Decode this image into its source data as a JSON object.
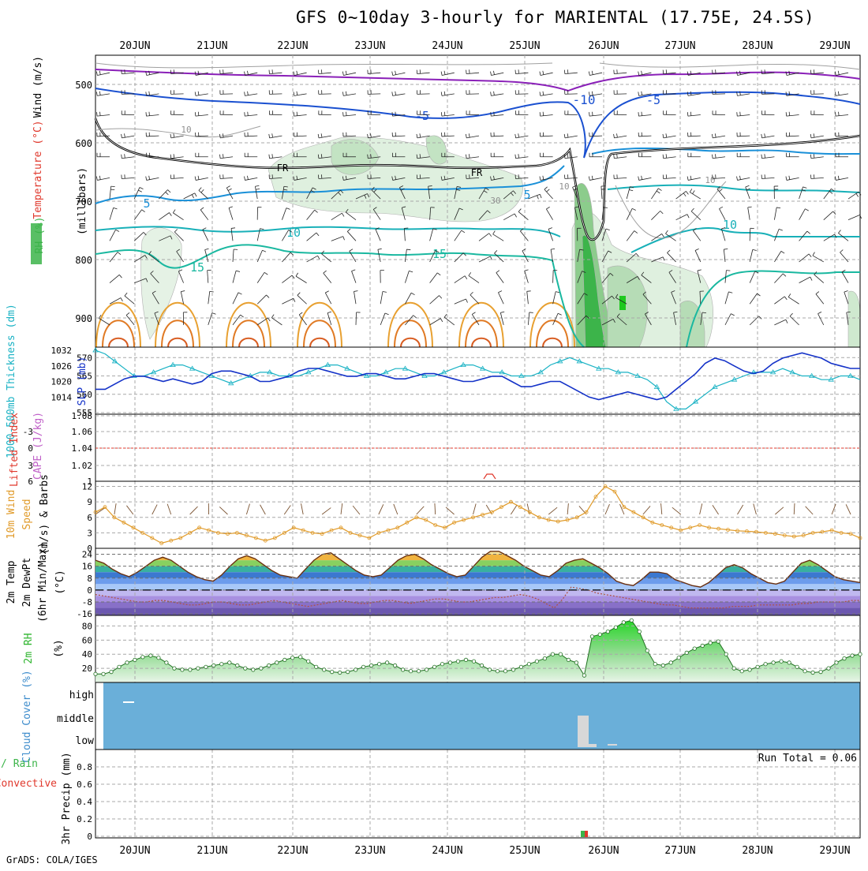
{
  "title": "GFS 0~10day 3-hourly for MARIENTAL (17.75E, 24.5S)",
  "credit": "GrADS: COLA/IGES",
  "dates": [
    "20JUN",
    "21JUN",
    "22JUN",
    "23JUN",
    "24JUN",
    "25JUN",
    "26JUN",
    "27JUN",
    "28JUN",
    "29JUN"
  ],
  "colors": {
    "rh_green": "#3cb44a",
    "temp_label": "#e0382c",
    "wind_label": "#000000",
    "thick_line": "#19b2c4",
    "slp_line": "#1432c8",
    "lifted": "#e0382c",
    "cape": "#c060c8",
    "wind10": "#e09a28",
    "rh2m": "#2fb52f",
    "cloud_bg": "#6aafd9",
    "cloud_label": "#3d8ccc",
    "precip_total": "#3cb44a",
    "precip_conv": "#e0382c"
  },
  "chart_data": [
    {
      "type": "heatmap",
      "panel": "upper-air cross section",
      "ylabel": "(millibars)",
      "ylabel_parts": [
        "RH (%)",
        "Temperature (°C)",
        "Wind (m/s)"
      ],
      "y_ticks": [
        500,
        600,
        700,
        800,
        900
      ],
      "ylim": [
        450,
        950
      ],
      "contour_labels": [
        "-10",
        "-5",
        "-5",
        "FR",
        "FR",
        "5",
        "5",
        "10",
        "10",
        "15",
        "15",
        "10",
        "10",
        "10",
        "30"
      ]
    },
    {
      "type": "line",
      "panel": "thickness and sea level pressure",
      "ylabel_left": "1000-500mb Thickness (dm)",
      "ylabel_right": "SLP (mb)",
      "left_ticks": [
        555,
        560,
        565,
        570
      ],
      "right_ticks": [
        1014,
        1020,
        1026,
        1032
      ],
      "x": [
        0,
        1,
        2,
        3,
        4,
        5,
        6,
        7,
        8,
        9,
        10,
        11,
        12,
        13,
        14,
        15,
        16,
        17,
        18,
        19,
        20,
        21,
        22,
        23,
        24,
        25,
        26,
        27,
        28,
        29,
        30,
        31,
        32,
        33,
        34,
        35,
        36,
        37,
        38,
        39,
        40,
        41,
        42,
        43,
        44,
        45,
        46,
        47,
        48,
        49,
        50,
        51,
        52,
        53,
        54,
        55,
        56,
        57,
        58,
        59,
        60,
        61,
        62,
        63,
        64,
        65,
        66,
        67,
        68,
        69,
        70,
        71,
        72,
        73,
        74,
        75,
        76,
        77,
        78,
        79
      ],
      "series": [
        {
          "name": "thickness",
          "values": [
            572,
            571,
            569,
            567,
            565,
            565,
            566,
            567,
            568,
            568,
            567,
            566,
            565,
            564,
            563,
            564,
            565,
            566,
            566,
            565,
            565,
            565,
            566,
            567,
            568,
            568,
            567,
            566,
            565,
            565,
            566,
            567,
            567,
            566,
            565,
            565,
            566,
            567,
            568,
            568,
            567,
            566,
            566,
            565,
            565,
            565,
            566,
            568,
            569,
            570,
            569,
            568,
            567,
            567,
            566,
            566,
            565,
            564,
            562,
            558,
            556,
            556,
            558,
            560,
            562,
            563,
            564,
            565,
            566,
            566,
            566,
            567,
            566,
            565,
            565,
            564,
            564,
            565,
            565,
            564
          ]
        },
        {
          "name": "slp",
          "values": [
            1017,
            1017,
            1019,
            1021,
            1022,
            1022,
            1021,
            1020,
            1021,
            1020,
            1019,
            1020,
            1023,
            1024,
            1024,
            1023,
            1022,
            1020,
            1020,
            1021,
            1022,
            1024,
            1025,
            1025,
            1024,
            1023,
            1022,
            1022,
            1023,
            1023,
            1022,
            1021,
            1021,
            1022,
            1023,
            1023,
            1022,
            1021,
            1020,
            1020,
            1021,
            1022,
            1022,
            1020,
            1018,
            1018,
            1019,
            1020,
            1020,
            1018,
            1016,
            1014,
            1013,
            1014,
            1015,
            1016,
            1015,
            1014,
            1013,
            1014,
            1017,
            1020,
            1023,
            1027,
            1029,
            1028,
            1026,
            1024,
            1023,
            1024,
            1027,
            1029,
            1030,
            1031,
            1030,
            1029,
            1027,
            1026,
            1025,
            1025
          ]
        }
      ]
    },
    {
      "type": "line",
      "panel": "stability",
      "ylabel_left": "Lifted Index",
      "ylabel_right": "CAPE (J/kg)",
      "left_ticks": [
        "-3",
        "0",
        "3",
        "6"
      ],
      "right_ticks": [
        "1",
        "1.02",
        "1.04",
        "1.06",
        "1.08"
      ],
      "lifted_zero_line": 0
    },
    {
      "type": "line",
      "panel": "10m wind",
      "ylabel": "10m Wind Speed (m/s) & Barbs",
      "ylabel_parts": [
        "10m Wind",
        "Speed",
        "(m/s) & Barbs"
      ],
      "y_ticks": [
        0,
        3,
        6,
        9,
        12
      ],
      "ylim": [
        0,
        13
      ],
      "values": [
        7,
        8,
        6,
        5,
        4,
        3,
        2,
        1,
        1.5,
        2,
        3,
        4,
        3.5,
        3,
        2.8,
        3,
        2.5,
        2,
        1.5,
        2,
        3,
        4,
        3.5,
        3,
        2.8,
        3.5,
        4,
        3,
        2.5,
        2,
        3,
        3.5,
        4,
        5,
        6,
        5.5,
        4.5,
        4,
        5,
        5.5,
        6,
        6.5,
        7,
        8,
        9,
        8,
        7,
        6,
        5.5,
        5.2,
        5.5,
        6,
        7,
        10,
        12,
        11,
        8,
        7,
        6,
        5,
        4.5,
        4,
        3.5,
        4,
        4.5,
        4,
        3.8,
        3.6,
        3.4,
        3.3,
        3.2,
        3,
        2.8,
        2.5,
        2.3,
        2.5,
        3,
        3.2,
        3.5,
        3,
        2.8,
        2
      ]
    },
    {
      "type": "area",
      "panel": "2m temperature",
      "ylabel_parts": [
        "2m Temp",
        "2m DewPt",
        "(6hr Min/Max)"
      ],
      "ylabel_unit": "(°C)",
      "y_ticks": [
        -16,
        -8,
        0,
        8,
        16,
        24
      ],
      "ylim": [
        -17,
        28
      ],
      "temp": [
        20,
        18,
        14,
        11,
        9,
        12,
        16,
        20,
        22,
        20,
        16,
        12,
        9,
        7,
        6,
        10,
        16,
        21,
        23,
        21,
        17,
        13,
        10,
        9,
        8,
        14,
        20,
        24,
        25,
        21,
        17,
        13,
        10,
        9,
        10,
        15,
        20,
        23,
        24,
        21,
        17,
        14,
        11,
        9,
        10,
        16,
        22,
        26,
        26,
        23,
        20,
        16,
        13,
        10,
        9,
        13,
        18,
        20,
        21,
        18,
        15,
        11,
        6,
        4,
        3,
        7,
        12,
        12,
        11,
        7,
        5,
        3,
        2,
        5,
        10,
        15,
        17,
        15,
        11,
        8,
        5,
        4,
        6,
        12,
        18,
        20,
        17,
        13,
        9,
        7,
        6,
        5
      ],
      "dewpt": [
        -3,
        -4,
        -5,
        -6,
        -7,
        -8,
        -8,
        -7,
        -7,
        -8,
        -9,
        -10,
        -10,
        -9,
        -8,
        -8,
        -9,
        -10,
        -10,
        -9,
        -8,
        -7,
        -8,
        -9,
        -10,
        -11,
        -10,
        -9,
        -8,
        -7,
        -8,
        -9,
        -9,
        -8,
        -7,
        -7,
        -8,
        -9,
        -8,
        -7,
        -6,
        -6,
        -7,
        -8,
        -8,
        -7,
        -6,
        -5,
        -5,
        -4,
        -3,
        -4,
        -6,
        -9,
        -12,
        -6,
        2,
        1,
        0,
        -2,
        -3,
        -4,
        -5,
        -6,
        -7,
        -8,
        -9,
        -10,
        -10,
        -11,
        -12,
        -12,
        -12,
        -12,
        -12,
        -11,
        -11,
        -11,
        -10,
        -10,
        -10,
        -10,
        -10,
        -9,
        -9,
        -8,
        -8,
        -8,
        -8,
        -7,
        -7
      ]
    },
    {
      "type": "area",
      "panel": "2m relative humidity",
      "ylabel": "2m RH",
      "ylabel_unit": "(%)",
      "y_ticks": [
        20,
        40,
        60,
        80
      ],
      "ylim": [
        0,
        95
      ],
      "values": [
        12,
        12,
        15,
        22,
        28,
        32,
        36,
        38,
        35,
        28,
        20,
        18,
        18,
        20,
        22,
        24,
        26,
        28,
        24,
        20,
        18,
        20,
        24,
        28,
        32,
        35,
        36,
        30,
        22,
        18,
        15,
        14,
        15,
        18,
        22,
        24,
        26,
        28,
        24,
        18,
        16,
        16,
        18,
        22,
        26,
        28,
        30,
        32,
        30,
        24,
        18,
        16,
        16,
        18,
        22,
        26,
        30,
        34,
        40,
        40,
        32,
        28,
        10,
        65,
        68,
        72,
        78,
        85,
        88,
        72,
        45,
        26,
        24,
        28,
        35,
        42,
        48,
        52,
        56,
        58,
        40,
        20,
        16,
        18,
        22,
        26,
        28,
        30,
        28,
        22,
        16,
        14,
        15,
        20,
        28,
        34,
        38,
        40
      ]
    },
    {
      "type": "bar",
      "panel": "cloud cover",
      "ylabel": "Cloud Cover (%)",
      "categories": [
        "high",
        "middle",
        "low"
      ]
    },
    {
      "type": "bar",
      "panel": "precipitation",
      "ylabel": "3hr Precip (mm)",
      "legend": [
        "Total / Rain",
        "Convective"
      ],
      "y_ticks": [
        0,
        0.2,
        0.4,
        0.6,
        0.8
      ],
      "ylim": [
        0,
        1.0
      ],
      "annotation": "Run Total = 0.06"
    }
  ]
}
